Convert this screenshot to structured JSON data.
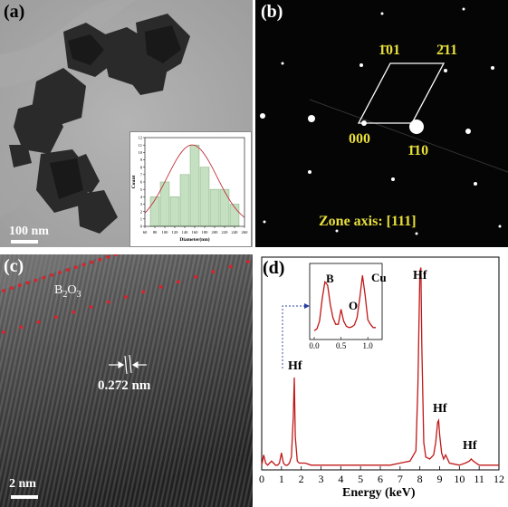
{
  "panels": {
    "a": {
      "label": "(a)",
      "scale_bar": "100 nm",
      "inset_histogram": {
        "ylabel": "Count",
        "xlabel": "Diameter(nm)",
        "x_ticks": [
          "60",
          "80",
          "100",
          "120",
          "140",
          "160",
          "180",
          "200",
          "220",
          "240",
          "260"
        ],
        "y_ticks": [
          "0",
          "1",
          "2",
          "3",
          "4",
          "5",
          "6",
          "7",
          "8",
          "9",
          "10",
          "11",
          "12"
        ]
      }
    },
    "b": {
      "label": "(b)",
      "spot_labels": {
        "top_left": "1̄01",
        "top_right": "2̄11",
        "bottom_left": "000",
        "bottom_right": "1̄10"
      },
      "zone_axis": "Zone axis: [111]",
      "label_color": "#e8df3a"
    },
    "c": {
      "label": "(c)",
      "layer_label_main": "B",
      "layer_label_sub1": "2",
      "layer_label_mid": "O",
      "layer_label_sub2": "3",
      "spacing": "0.272 nm",
      "scale_bar": "2 nm",
      "dot_color": "#e0202a"
    },
    "d": {
      "label": "(d)",
      "xlabel": "Energy (keV)",
      "x_ticks": [
        "0",
        "1",
        "2",
        "3",
        "4",
        "5",
        "6",
        "7",
        "8",
        "9",
        "10",
        "11",
        "12"
      ],
      "peak_labels": [
        "Hf",
        "Hf",
        "Hf",
        "Hf"
      ],
      "inset_peak_labels": [
        "B",
        "O",
        "Cu"
      ],
      "inset_x_ticks": [
        "0.0",
        "0.5",
        "1.0"
      ],
      "line_color": "#c01818"
    }
  },
  "chart_data": [
    {
      "type": "bar",
      "title": "",
      "xlabel": "Diameter(nm)",
      "ylabel": "Count",
      "categories": [
        "80",
        "100",
        "120",
        "140",
        "160",
        "180",
        "200",
        "220",
        "240"
      ],
      "values": [
        4,
        6,
        4,
        7,
        11,
        8,
        5,
        5,
        3
      ],
      "fit": "gaussian",
      "fit_peak": {
        "x": 155,
        "y": 11
      },
      "xlim": [
        60,
        260
      ],
      "ylim": [
        0,
        12
      ]
    },
    {
      "type": "line",
      "title": "",
      "xlabel": "Energy (keV)",
      "ylabel": "",
      "xlim": [
        0,
        12
      ],
      "x": [
        0.0,
        0.1,
        0.2,
        0.3,
        0.4,
        0.5,
        0.6,
        0.7,
        0.8,
        0.9,
        1.0,
        1.1,
        1.2,
        1.3,
        1.4,
        1.5,
        1.6,
        1.65,
        1.7,
        1.8,
        1.9,
        2.0,
        2.2,
        2.5,
        3,
        4,
        5,
        6,
        6.5,
        7,
        7.5,
        7.8,
        7.9,
        8.0,
        8.05,
        8.1,
        8.2,
        8.3,
        8.5,
        8.7,
        8.8,
        8.9,
        8.95,
        9.0,
        9.1,
        9.2,
        9.3,
        9.5,
        10,
        10.3,
        10.5,
        10.6,
        10.7,
        11,
        11.5,
        12
      ],
      "y": [
        0.01,
        0.06,
        0.02,
        0.01,
        0.02,
        0.03,
        0.02,
        0.01,
        0.01,
        0.02,
        0.07,
        0.02,
        0.01,
        0.01,
        0.02,
        0.05,
        0.25,
        0.44,
        0.15,
        0.03,
        0.02,
        0.02,
        0.02,
        0.01,
        0.01,
        0.01,
        0.01,
        0.01,
        0.01,
        0.02,
        0.03,
        0.08,
        0.4,
        0.96,
        0.98,
        0.6,
        0.12,
        0.05,
        0.04,
        0.06,
        0.12,
        0.22,
        0.23,
        0.16,
        0.07,
        0.04,
        0.06,
        0.02,
        0.01,
        0.02,
        0.03,
        0.04,
        0.03,
        0.01,
        0.01,
        0.01
      ]
    },
    {
      "type": "line",
      "title": "",
      "xlabel": "",
      "ylabel": "",
      "xlim": [
        0,
        1.2
      ],
      "x": [
        0.0,
        0.05,
        0.1,
        0.15,
        0.2,
        0.25,
        0.3,
        0.35,
        0.4,
        0.45,
        0.5,
        0.55,
        0.6,
        0.65,
        0.7,
        0.75,
        0.8,
        0.85,
        0.9,
        0.95,
        1.0,
        1.05,
        1.1,
        1.15
      ],
      "y": [
        0.05,
        0.08,
        0.2,
        0.55,
        0.8,
        0.75,
        0.45,
        0.25,
        0.15,
        0.15,
        0.38,
        0.2,
        0.12,
        0.1,
        0.11,
        0.14,
        0.25,
        0.55,
        0.9,
        0.6,
        0.22,
        0.15,
        0.1,
        0.1
      ]
    }
  ]
}
